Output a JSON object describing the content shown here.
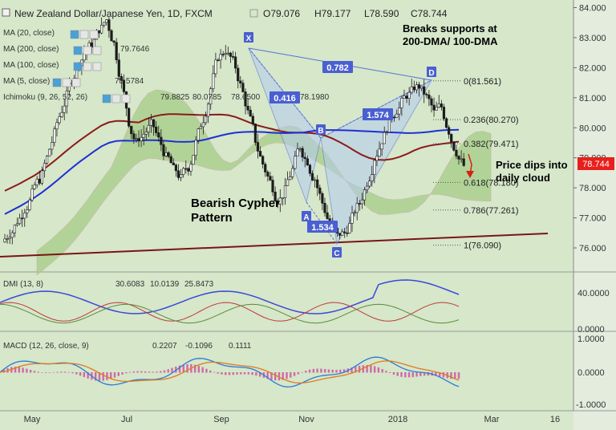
{
  "header": {
    "symbol": "New Zealand Dollar/Japanese Yen, 1D, FXCM",
    "open": "O79.076",
    "high": "H79.177",
    "low": "L78.590",
    "close": "C78.744"
  },
  "indicators": [
    {
      "label": "MA (20, close)",
      "value": ""
    },
    {
      "label": "MA (200, close)",
      "value": "79.7646"
    },
    {
      "label": "MA (100, close)",
      "value": ""
    },
    {
      "label": "MA (5, close)",
      "value": "78.5784"
    },
    {
      "label": "Ichimoku (9, 26, 52, 26)",
      "values": [
        "79.8825",
        "80.0785",
        "78.6500",
        "78.1980"
      ]
    }
  ],
  "annotations": {
    "breaks": "Breaks supports at\n200-DMA/ 100-DMA",
    "pattern": "Bearish Cypher\nPattern",
    "dips": "Price dips into\ndaily cloud",
    "points": {
      "X": "X",
      "A": "A",
      "B": "B",
      "C": "C",
      "D": "D"
    },
    "ratios": {
      "xd": "0.782",
      "xb": "0.416",
      "bd": "1.574",
      "ac": "1.534"
    }
  },
  "fib_levels": [
    {
      "label": "0(81.561)",
      "value": 81.561
    },
    {
      "label": "0.236(80.270)",
      "value": 80.27
    },
    {
      "label": "0.382(79.471)",
      "value": 79.471
    },
    {
      "label": "0.618(78.180)",
      "value": 78.18
    },
    {
      "label": "0.786(77.261)",
      "value": 77.261
    },
    {
      "label": "1(76.090)",
      "value": 76.09
    }
  ],
  "price_axis": {
    "ticks": [
      "84.000",
      "83.000",
      "82.000",
      "81.000",
      "80.000",
      "79.000",
      "78.000",
      "77.000",
      "76.000"
    ],
    "current_price": "78.744",
    "current_color": "#e8201c"
  },
  "time_axis": {
    "labels": [
      "May",
      "Jul",
      "Sep",
      "Nov",
      "2018",
      "Mar",
      "16"
    ]
  },
  "dmi": {
    "label": "DMI (13, 8)",
    "values": [
      "30.6083",
      "10.0139",
      "25.8473"
    ],
    "ticks": [
      "40.0000",
      "0.0000"
    ]
  },
  "macd": {
    "label": "MACD (12, 26, close, 9)",
    "values": [
      "0.2207",
      "-0.1096",
      "0.1111"
    ],
    "ticks": [
      "1.0000",
      "0.0000",
      "-1.0000"
    ]
  },
  "colors": {
    "ma200": "#1f2fd4",
    "ma100": "#8b1a1a",
    "cloud": "#a9cf8a",
    "pattern": "#9fb8e8",
    "candle": "#1c1c1c"
  },
  "chart_data": {
    "type": "candlestick",
    "x_labels": [
      "May",
      "Jul",
      "Sep",
      "Nov",
      "2018",
      "Mar",
      "16"
    ],
    "ylim": [
      75.6,
      84.2
    ],
    "pattern_points": [
      {
        "name": "X",
        "price": 82.75
      },
      {
        "name": "A",
        "price": 77.4
      },
      {
        "name": "B",
        "price": 79.75
      },
      {
        "name": "C",
        "price": 76.15
      },
      {
        "name": "D",
        "price": 81.58
      }
    ],
    "close": [
      76.5,
      76.9,
      77.3,
      77.8,
      78.3,
      79.0,
      79.8,
      80.6,
      81.4,
      82.0,
      82.5,
      82.8,
      83.3,
      83.6,
      82.8,
      81.5,
      80.2,
      79.5,
      79.8,
      80.1,
      79.6,
      79.0,
      78.6,
      78.3,
      78.7,
      79.5,
      80.3,
      81.3,
      82.4,
      82.6,
      82.2,
      81.4,
      80.5,
      79.6,
      78.8,
      78.2,
      77.6,
      77.9,
      78.6,
      79.4,
      78.9,
      78.3,
      77.5,
      76.8,
      76.4,
      76.5,
      77.0,
      77.5,
      78.2,
      79.0,
      79.6,
      80.2,
      80.6,
      81.0,
      81.2,
      81.4,
      81.0,
      80.5,
      80.7,
      79.9,
      79.2,
      78.74
    ]
  }
}
